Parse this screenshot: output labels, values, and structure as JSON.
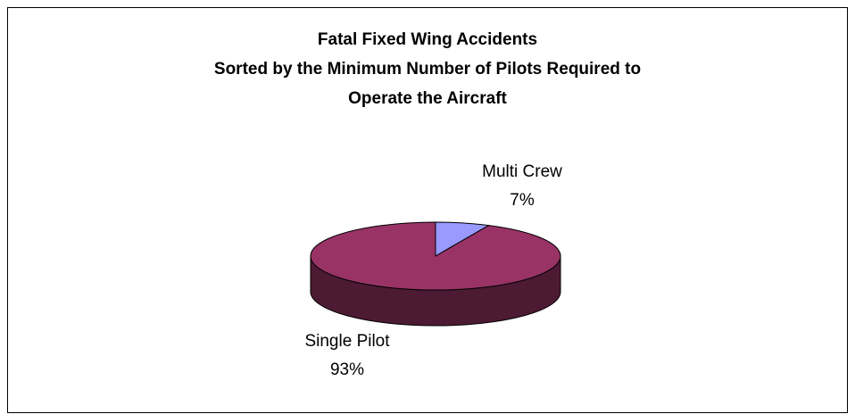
{
  "chart_data": {
    "type": "pie3d",
    "title": [
      "Fatal Fixed Wing Accidents",
      "Sorted by the Minimum Number of Pilots Required to",
      "Operate the Aircraft"
    ],
    "categories": [
      "Multi Crew",
      "Single Pilot"
    ],
    "values": [
      7,
      93
    ],
    "value_labels": [
      "7%",
      "93%"
    ],
    "colors": [
      "#9999ff",
      "#993366"
    ]
  }
}
